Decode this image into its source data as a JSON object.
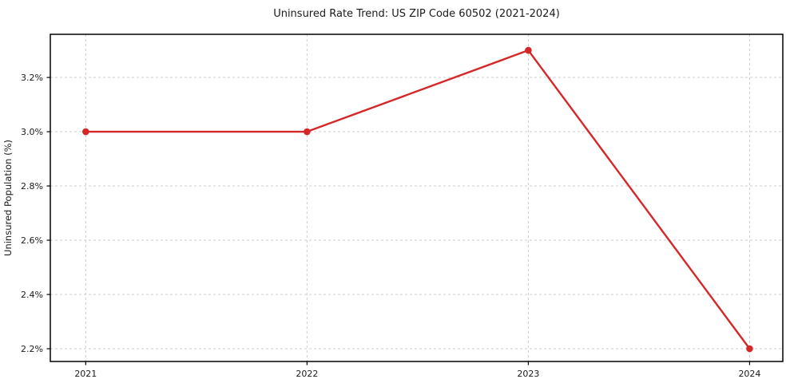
{
  "chart_data": {
    "type": "line",
    "title": "Uninsured Rate Trend: US ZIP Code 60502 (2021-2024)",
    "xlabel": "",
    "ylabel": "Uninsured Population (%)",
    "x": [
      2021,
      2022,
      2023,
      2024
    ],
    "y": [
      3.0,
      3.0,
      3.3,
      2.2
    ],
    "xtick_labels": [
      "2021",
      "2022",
      "2023",
      "2024"
    ],
    "yticks": [
      2.2,
      2.4,
      2.6,
      2.8,
      3.0,
      3.2
    ],
    "ytick_labels": [
      "2.2%",
      "2.4%",
      "2.6%",
      "2.8%",
      "3.0%",
      "3.2%"
    ],
    "xlim": [
      2020.84,
      2024.15
    ],
    "ylim": [
      2.153,
      3.359
    ],
    "grid": true,
    "grid_style": "dashed",
    "legend": false,
    "marker": "circle",
    "line_color": "#d62728",
    "grid_color": "#cccccc",
    "spine_color": "#000000",
    "text_color": "#1a1a1a",
    "background": "#ffffff"
  }
}
